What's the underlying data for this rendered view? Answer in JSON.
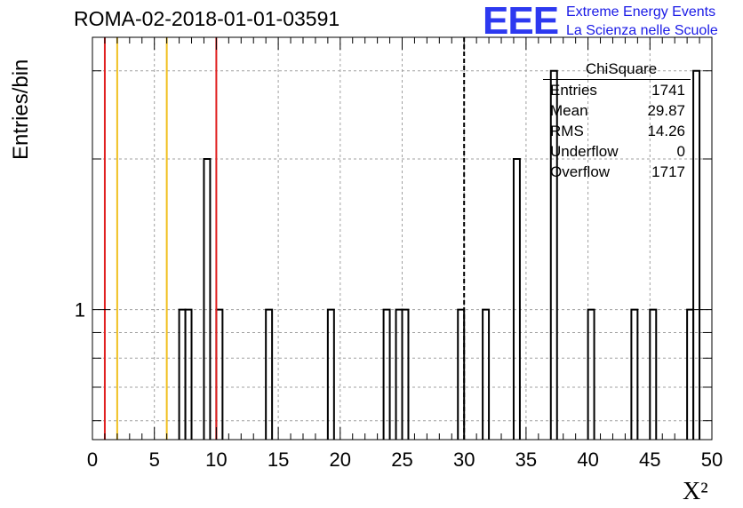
{
  "title": "ROMA-02-2018-01-01-03591",
  "logo": {
    "mark": "EEE",
    "line1": "Extreme Energy Events",
    "line2": "La Scienza nelle Scuole",
    "color": "#2d39f0"
  },
  "stats": {
    "title": "ChiSquare",
    "rows": [
      {
        "label": "Entries",
        "value": "1741"
      },
      {
        "label": "Mean",
        "value": "29.87"
      },
      {
        "label": "RMS",
        "value": "14.26"
      },
      {
        "label": "Underflow",
        "value": "0"
      },
      {
        "label": "Overflow",
        "value": "1717"
      }
    ]
  },
  "chart_data": {
    "type": "bar",
    "histogram": true,
    "xlabel": "X²",
    "ylabel": "Entries/bin",
    "xlim": [
      0,
      50
    ],
    "ylim_log": [
      0.55,
      3.5
    ],
    "yscale": "log",
    "bin_width": 0.5,
    "xticks": [
      0,
      5,
      10,
      15,
      20,
      25,
      30,
      35,
      40,
      45,
      50
    ],
    "yticks": [
      1
    ],
    "grid": true,
    "bins": [
      {
        "x": 7.0,
        "value": 1
      },
      {
        "x": 7.5,
        "value": 1
      },
      {
        "x": 9.0,
        "value": 2
      },
      {
        "x": 10.0,
        "value": 1
      },
      {
        "x": 14.0,
        "value": 1
      },
      {
        "x": 19.0,
        "value": 1
      },
      {
        "x": 23.5,
        "value": 1
      },
      {
        "x": 24.5,
        "value": 1
      },
      {
        "x": 25.0,
        "value": 1
      },
      {
        "x": 29.5,
        "value": 1
      },
      {
        "x": 31.5,
        "value": 1
      },
      {
        "x": 34.0,
        "value": 2
      },
      {
        "x": 37.0,
        "value": 3
      },
      {
        "x": 40.0,
        "value": 1
      },
      {
        "x": 43.5,
        "value": 1
      },
      {
        "x": 45.0,
        "value": 1
      },
      {
        "x": 48.0,
        "value": 1
      },
      {
        "x": 48.5,
        "value": 3
      }
    ],
    "reference_lines": [
      {
        "x": 1,
        "color": "#e02020",
        "style": "solid"
      },
      {
        "x": 2,
        "color": "#f0c020",
        "style": "solid"
      },
      {
        "x": 6,
        "color": "#f0c020",
        "style": "solid"
      },
      {
        "x": 10,
        "color": "#e02020",
        "style": "solid"
      },
      {
        "x": 30,
        "color": "#000000",
        "style": "dashed"
      }
    ]
  }
}
